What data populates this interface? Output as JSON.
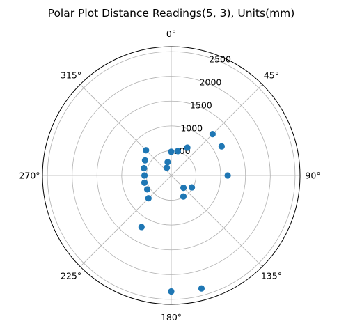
{
  "chart_data": {
    "type": "scatter",
    "projection": "polar",
    "title": "Polar Plot Distance Readings(5, 3), Units(mm)",
    "theta_zero_location": "N",
    "theta_direction": "clockwise",
    "theta_tick_labels": [
      "0°",
      "45°",
      "90°",
      "135°",
      "180°",
      "225°",
      "270°",
      "315°"
    ],
    "theta_ticks_deg": [
      0,
      45,
      90,
      135,
      180,
      225,
      270,
      315
    ],
    "radial_ticks": [
      500,
      1000,
      1500,
      2000,
      2500
    ],
    "radial_tick_labels": [
      "500",
      "1000",
      "1500",
      "2000",
      "2500"
    ],
    "rlim": [
      0,
      2600
    ],
    "grid": true,
    "marker_color": "#1f77b4",
    "points": [
      {
        "theta_deg": 0,
        "r": 480
      },
      {
        "theta_deg": 15,
        "r": 510
      },
      {
        "theta_deg": 30,
        "r": 650
      },
      {
        "theta_deg": 45,
        "r": 1180
      },
      {
        "theta_deg": 60,
        "r": 1175
      },
      {
        "theta_deg": 90,
        "r": 1140
      },
      {
        "theta_deg": 120,
        "r": 480
      },
      {
        "theta_deg": 135,
        "r": 350
      },
      {
        "theta_deg": 150,
        "r": 490
      },
      {
        "theta_deg": 165,
        "r": 2360
      },
      {
        "theta_deg": 180,
        "r": 2340
      },
      {
        "theta_deg": 210,
        "r": 1200
      },
      {
        "theta_deg": 225,
        "r": 650
      },
      {
        "theta_deg": 240,
        "r": 560
      },
      {
        "theta_deg": 255,
        "r": 560
      },
      {
        "theta_deg": 270,
        "r": 540
      },
      {
        "theta_deg": 285,
        "r": 570
      },
      {
        "theta_deg": 300,
        "r": 610
      },
      {
        "theta_deg": 315,
        "r": 720
      },
      {
        "theta_deg": 330,
        "r": 180
      },
      {
        "theta_deg": 345,
        "r": 280
      }
    ]
  }
}
